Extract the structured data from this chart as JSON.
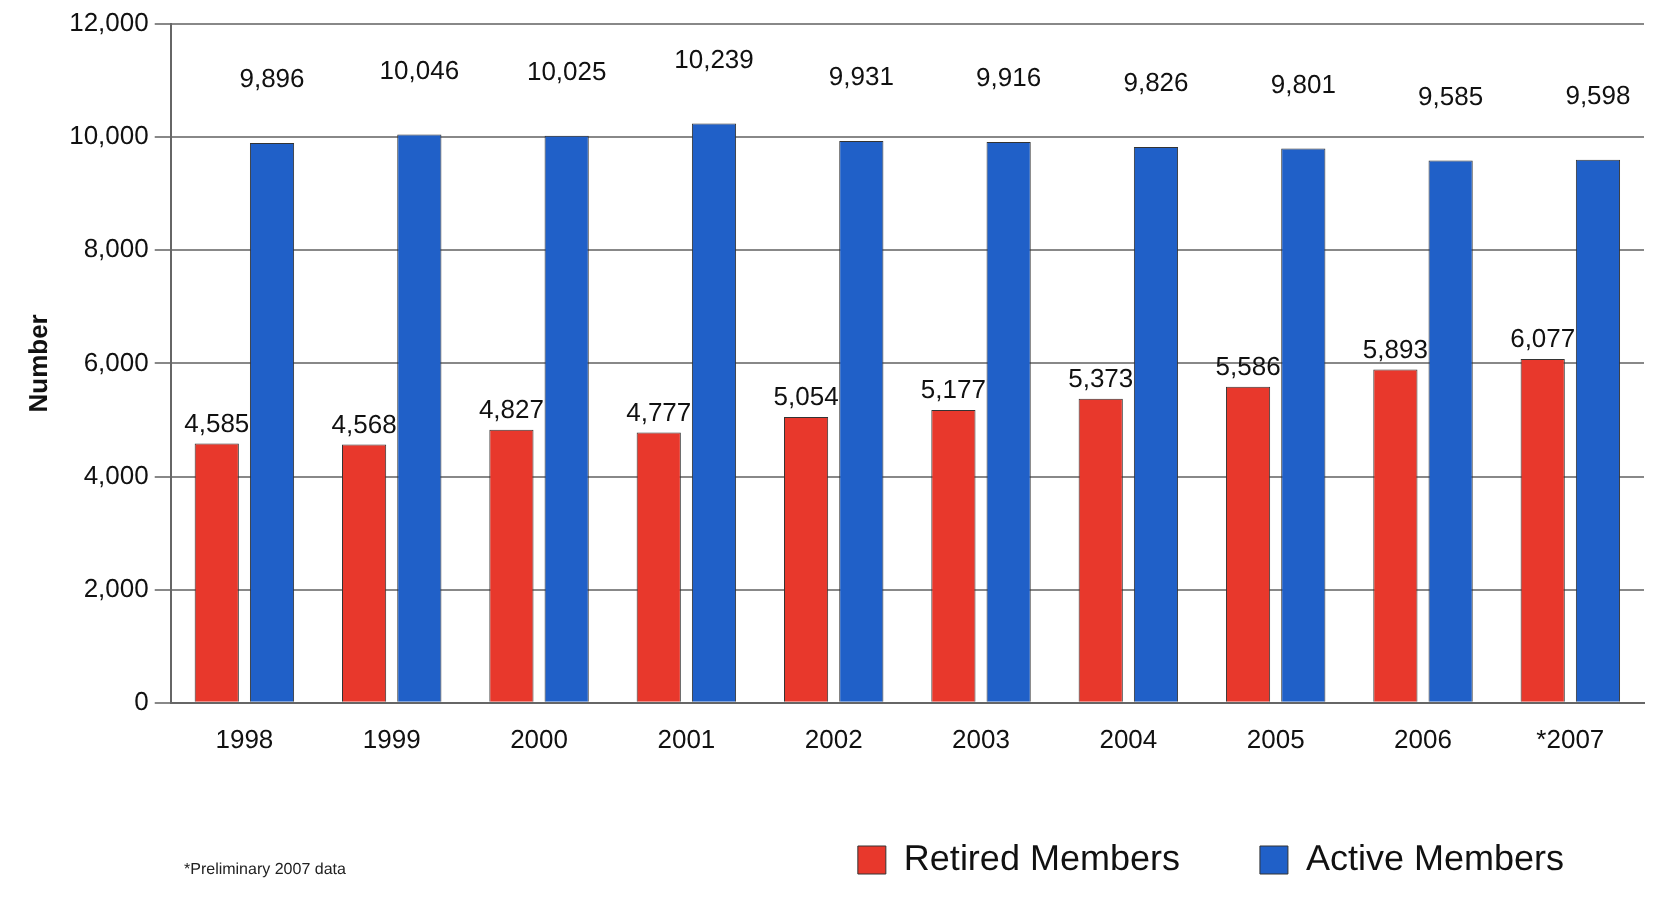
{
  "chart_data": {
    "type": "bar",
    "ylabel": "Number",
    "categories": [
      "1998",
      "1999",
      "2000",
      "2001",
      "2002",
      "2003",
      "2004",
      "2005",
      "2006",
      "*2007"
    ],
    "series": [
      {
        "name": "Retired Members",
        "color": "#e8382c",
        "values": [
          4585,
          4568,
          4827,
          4777,
          5054,
          5177,
          5373,
          5586,
          5893,
          6077
        ],
        "value_labels": [
          "4,585",
          "4,568",
          "4,827",
          "4,777",
          "5,054",
          "5,177",
          "5,373",
          "5,586",
          "5,893",
          "6,077"
        ]
      },
      {
        "name": "Active Members",
        "color": "#2060c8",
        "values": [
          9896,
          10046,
          10025,
          10239,
          9931,
          9916,
          9826,
          9801,
          9585,
          9598
        ],
        "value_labels": [
          "9,896",
          "10,046",
          "10,025",
          "10,239",
          "9,931",
          "9,916",
          "9,826",
          "9,801",
          "9,585",
          "9,598"
        ]
      }
    ],
    "ylim": [
      0,
      12000
    ],
    "yticks": [
      0,
      {
        "value": 2000,
        "label": "2,000"
      },
      {
        "value": 4000,
        "label": "4,000"
      },
      {
        "value": 6000,
        "label": "6,000"
      },
      {
        "value": 8000,
        "label": "8,000"
      },
      {
        "value": 10000,
        "label": "10,000"
      },
      {
        "value": 12000,
        "label": "12,000"
      }
    ],
    "grid": "y",
    "legend": "bottom right",
    "annotations": [
      "*Preliminary 2007 data"
    ]
  }
}
